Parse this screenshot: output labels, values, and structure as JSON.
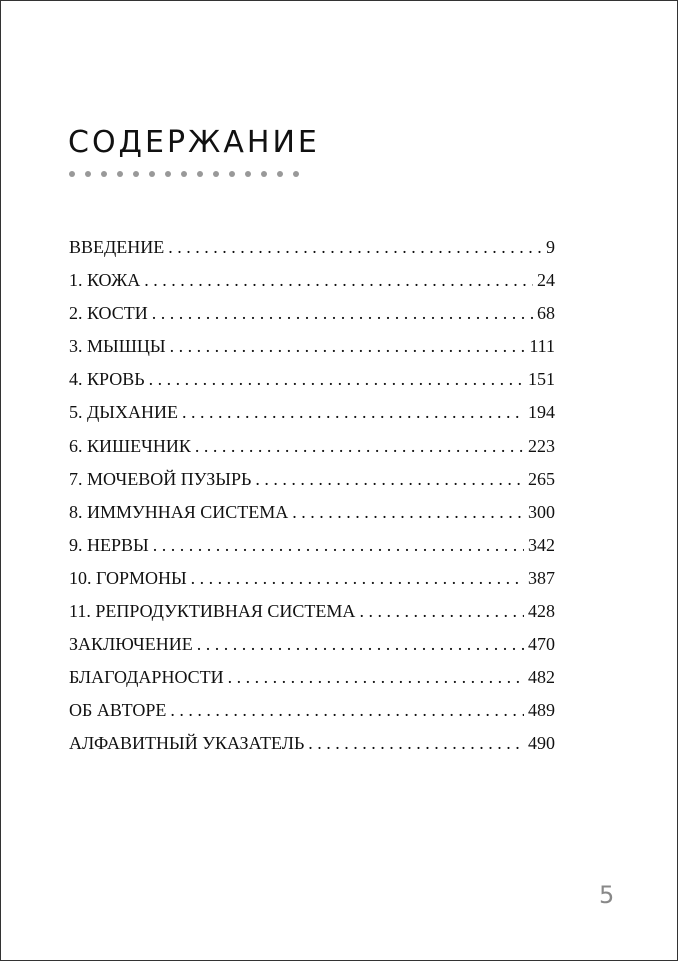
{
  "heading": "СОДЕРЖАНИЕ",
  "toc": [
    {
      "label": "ВВЕДЕНИЕ",
      "page": "9"
    },
    {
      "label": "1. КОЖА",
      "page": "24"
    },
    {
      "label": "2. КОСТИ",
      "page": "68"
    },
    {
      "label": "3. МЫШЦЫ",
      "page": "111"
    },
    {
      "label": "4. КРОВЬ",
      "page": "151"
    },
    {
      "label": "5. ДЫХАНИЕ",
      "page": "194"
    },
    {
      "label": "6. КИШЕЧНИК",
      "page": "223"
    },
    {
      "label": "7. МОЧЕВОЙ ПУЗЫРЬ",
      "page": "265"
    },
    {
      "label": "8. ИММУННАЯ СИСТЕМА",
      "page": "300"
    },
    {
      "label": "9. НЕРВЫ",
      "page": "342"
    },
    {
      "label": "10. ГОРМОНЫ",
      "page": "387"
    },
    {
      "label": "11. РЕПРОДУКТИВНАЯ СИСТЕМА",
      "page": "428"
    },
    {
      "label": "ЗАКЛЮЧЕНИЕ",
      "page": "470"
    },
    {
      "label": "БЛАГОДАРНОСТИ",
      "page": "482"
    },
    {
      "label": "ОБ АВТОРЕ",
      "page": "489"
    },
    {
      "label": "АЛФАВИТНЫЙ УКАЗАТЕЛЬ",
      "page": "490"
    }
  ],
  "page_number": "5",
  "colors": {
    "text": "#111111",
    "ornament": "#999999",
    "page_number": "#888888"
  }
}
